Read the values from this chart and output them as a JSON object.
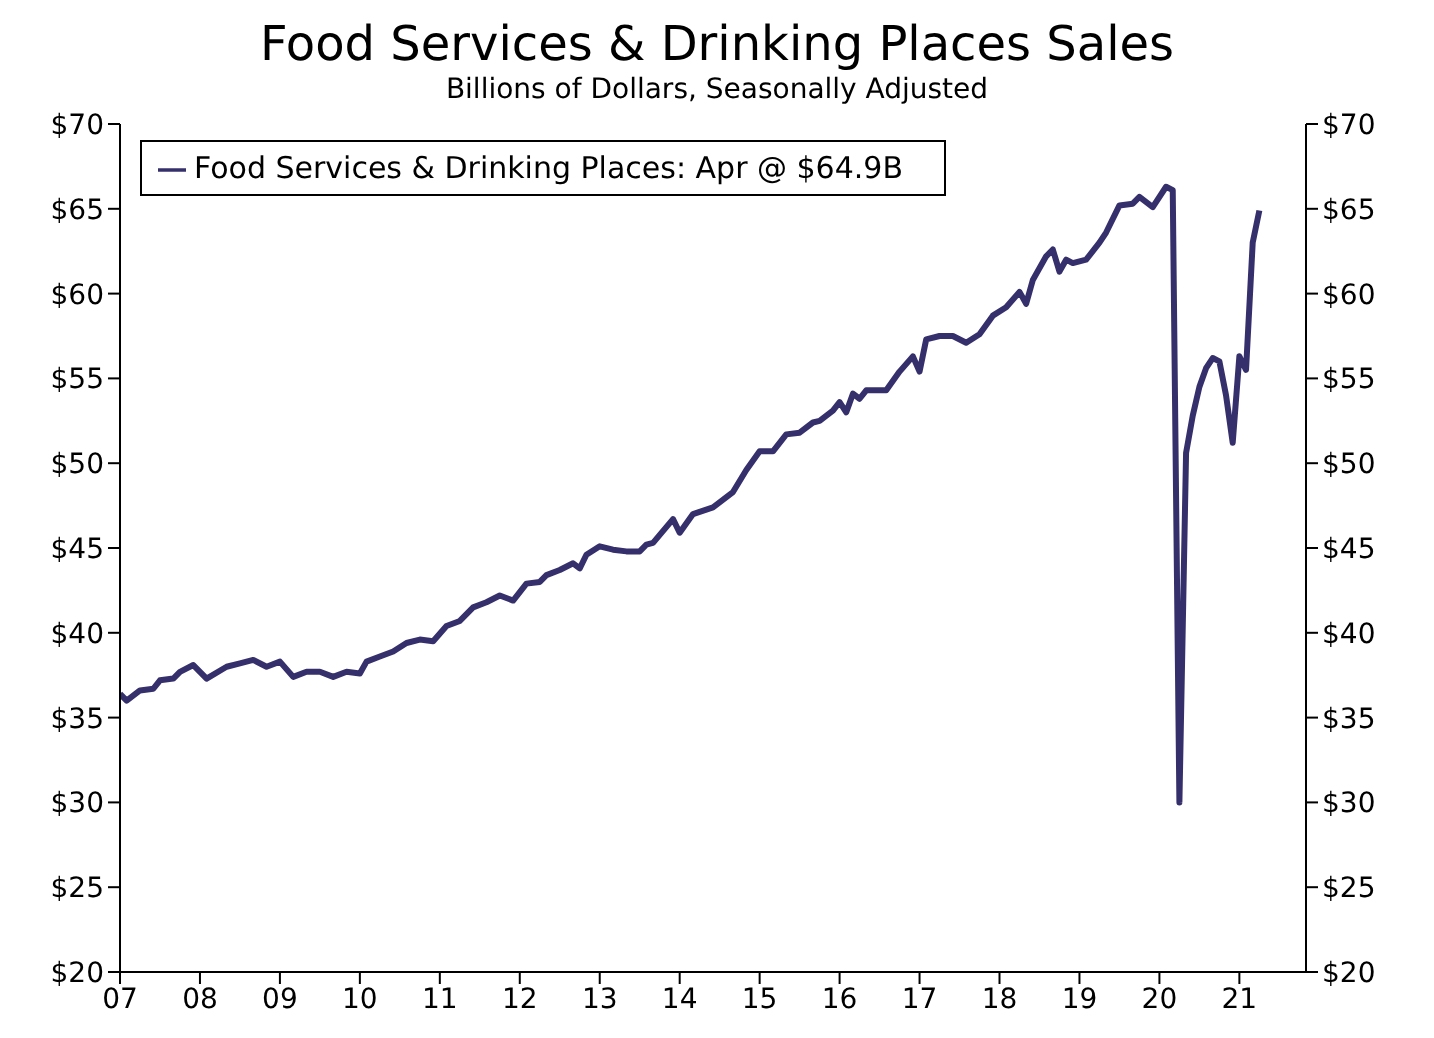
{
  "chart_data": {
    "type": "line",
    "title": "Food Services & Drinking Places Sales",
    "subtitle": "Billions of Dollars, Seasonally Adjusted",
    "x": [
      "2007-01",
      "2007-02",
      "2007-04",
      "2007-06",
      "2007-07",
      "2007-09",
      "2007-10",
      "2007-12",
      "2008-02",
      "2008-05",
      "2008-07",
      "2008-09",
      "2008-11",
      "2009-01",
      "2009-03",
      "2009-05",
      "2009-07",
      "2009-09",
      "2009-11",
      "2010-01",
      "2010-02",
      "2010-04",
      "2010-06",
      "2010-08",
      "2010-10",
      "2010-12",
      "2011-02",
      "2011-04",
      "2011-06",
      "2011-08",
      "2011-10",
      "2011-12",
      "2012-02",
      "2012-04",
      "2012-05",
      "2012-07",
      "2012-09",
      "2012-10",
      "2012-11",
      "2013-01",
      "2013-03",
      "2013-05",
      "2013-07",
      "2013-08",
      "2013-09",
      "2013-12",
      "2014-01",
      "2014-03",
      "2014-06",
      "2014-09",
      "2014-11",
      "2015-01",
      "2015-03",
      "2015-05",
      "2015-07",
      "2015-09",
      "2015-10",
      "2015-12",
      "2016-01",
      "2016-02",
      "2016-03",
      "2016-04",
      "2016-05",
      "2016-08",
      "2016-10",
      "2016-12",
      "2017-01",
      "2017-02",
      "2017-04",
      "2017-06",
      "2017-08",
      "2017-10",
      "2017-12",
      "2018-02",
      "2018-04",
      "2018-05",
      "2018-06",
      "2018-08",
      "2018-09",
      "2018-10",
      "2018-11",
      "2018-12",
      "2019-02",
      "2019-04",
      "2019-05",
      "2019-07",
      "2019-09",
      "2019-10",
      "2019-12",
      "2020-02",
      "2020-03",
      "2020-04",
      "2020-05",
      "2020-06",
      "2020-07",
      "2020-08",
      "2020-09",
      "2020-10",
      "2020-11",
      "2020-12",
      "2021-01",
      "2021-02",
      "2021-03",
      "2021-04"
    ],
    "series": [
      {
        "name": "Food Services & Drinking Places: Apr @ $64.9B",
        "color": "#35306b",
        "values": [
          36.4,
          36.0,
          36.6,
          36.7,
          37.2,
          37.3,
          37.7,
          38.1,
          37.3,
          38.0,
          38.2,
          38.4,
          38.0,
          38.3,
          37.4,
          37.7,
          37.7,
          37.4,
          37.7,
          37.6,
          38.3,
          38.6,
          38.9,
          39.4,
          39.6,
          39.5,
          40.4,
          40.7,
          41.5,
          41.8,
          42.2,
          41.9,
          42.9,
          43.0,
          43.4,
          43.7,
          44.1,
          43.8,
          44.6,
          45.1,
          44.9,
          44.8,
          44.8,
          45.2,
          45.3,
          46.7,
          45.9,
          47.0,
          47.4,
          48.3,
          49.6,
          50.7,
          50.7,
          51.7,
          51.8,
          52.4,
          52.5,
          53.1,
          53.6,
          53.0,
          54.1,
          53.8,
          54.3,
          54.3,
          55.4,
          56.3,
          55.4,
          57.3,
          57.5,
          57.5,
          57.1,
          57.6,
          58.7,
          59.2,
          60.1,
          59.4,
          60.8,
          62.2,
          62.6,
          61.3,
          62.0,
          61.8,
          62.0,
          63.0,
          63.6,
          65.2,
          65.3,
          65.7,
          65.1,
          66.3,
          66.1,
          30.0,
          50.6,
          52.8,
          54.5,
          55.6,
          56.2,
          56.0,
          54.0,
          51.2,
          56.3,
          55.5,
          63.0,
          64.9
        ]
      }
    ],
    "xlim": [
      "2007-01",
      "2021-11"
    ],
    "xticks": [
      {
        "value": "2007",
        "label": "07"
      },
      {
        "value": "2008",
        "label": "08"
      },
      {
        "value": "2009",
        "label": "09"
      },
      {
        "value": "2010",
        "label": "10"
      },
      {
        "value": "2011",
        "label": "11"
      },
      {
        "value": "2012",
        "label": "12"
      },
      {
        "value": "2013",
        "label": "13"
      },
      {
        "value": "2014",
        "label": "14"
      },
      {
        "value": "2015",
        "label": "15"
      },
      {
        "value": "2016",
        "label": "16"
      },
      {
        "value": "2017",
        "label": "17"
      },
      {
        "value": "2018",
        "label": "18"
      },
      {
        "value": "2019",
        "label": "19"
      },
      {
        "value": "2020",
        "label": "20"
      },
      {
        "value": "2021",
        "label": "21"
      }
    ],
    "ylim": [
      20,
      70
    ],
    "yticks": [
      {
        "value": 20,
        "label": "$20"
      },
      {
        "value": 25,
        "label": "$25"
      },
      {
        "value": 30,
        "label": "$30"
      },
      {
        "value": 35,
        "label": "$35"
      },
      {
        "value": 40,
        "label": "$40"
      },
      {
        "value": 45,
        "label": "$45"
      },
      {
        "value": 50,
        "label": "$50"
      },
      {
        "value": 55,
        "label": "$55"
      },
      {
        "value": 60,
        "label": "$60"
      },
      {
        "value": 65,
        "label": "$65"
      },
      {
        "value": 70,
        "label": "$70"
      }
    ],
    "y2lim": [
      20,
      70
    ],
    "y2ticks": [
      {
        "value": 20,
        "label": "$20"
      },
      {
        "value": 25,
        "label": "$25"
      },
      {
        "value": 30,
        "label": "$30"
      },
      {
        "value": 35,
        "label": "$35"
      },
      {
        "value": 40,
        "label": "$40"
      },
      {
        "value": 45,
        "label": "$45"
      },
      {
        "value": 50,
        "label": "$50"
      },
      {
        "value": 55,
        "label": "$55"
      },
      {
        "value": 60,
        "label": "$60"
      },
      {
        "value": 65,
        "label": "$65"
      },
      {
        "value": 70,
        "label": "$70"
      }
    ],
    "grid": false,
    "legend": "top left",
    "marker": "none",
    "line_style": "solid"
  }
}
